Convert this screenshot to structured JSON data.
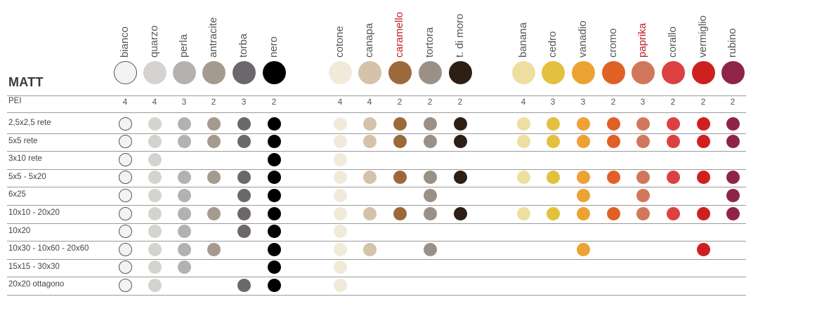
{
  "title": "MATT",
  "pei_label": "PEI",
  "columns": [
    {
      "name": "bianco",
      "color": "#f4f3f1",
      "border": "#555555",
      "pei": "4",
      "highlight": false
    },
    {
      "name": "quarzo",
      "color": "#d4d3cf",
      "border": null,
      "pei": "4",
      "highlight": false
    },
    {
      "name": "perla",
      "color": "#b3b2b0",
      "border": null,
      "pei": "3",
      "highlight": false
    },
    {
      "name": "antracite",
      "color": "#a49a8e",
      "border": null,
      "pei": "2",
      "highlight": false
    },
    {
      "name": "torba",
      "color": "#6b676a",
      "border": null,
      "pei": "3",
      "highlight": false
    },
    {
      "name": "nero",
      "color": "#000000",
      "border": null,
      "pei": "2",
      "highlight": false
    },
    {
      "name": "cotone",
      "color": "#f2ead8",
      "border": null,
      "pei": "4",
      "highlight": false
    },
    {
      "name": "canapa",
      "color": "#d4c2aa",
      "border": null,
      "pei": "4",
      "highlight": false
    },
    {
      "name": "caramello",
      "color": "#9c6a3a",
      "border": null,
      "pei": "2",
      "highlight": true
    },
    {
      "name": "tortora",
      "color": "#9a9086",
      "border": null,
      "pei": "2",
      "highlight": false
    },
    {
      "name": "t. di moro",
      "color": "#2d1e16",
      "border": null,
      "pei": "2",
      "highlight": false
    },
    {
      "name": "banana",
      "color": "#eedfa0",
      "border": null,
      "pei": "4",
      "highlight": false
    },
    {
      "name": "cedro",
      "color": "#e3c13e",
      "border": null,
      "pei": "3",
      "highlight": false
    },
    {
      "name": "vanadio",
      "color": "#eda234",
      "border": null,
      "pei": "3",
      "highlight": false
    },
    {
      "name": "cromo",
      "color": "#e06126",
      "border": null,
      "pei": "2",
      "highlight": false
    },
    {
      "name": "paprika",
      "color": "#d1775c",
      "border": null,
      "pei": "3",
      "highlight": true
    },
    {
      "name": "corallo",
      "color": "#dc4141",
      "border": null,
      "pei": "2",
      "highlight": false
    },
    {
      "name": "vermiglio",
      "color": "#cf2020",
      "border": null,
      "pei": "2",
      "highlight": false
    },
    {
      "name": "rubino",
      "color": "#8f2449",
      "border": null,
      "pei": "2",
      "highlight": false
    }
  ],
  "rows": [
    {
      "label": "2,5x2,5 rete",
      "available": [
        1,
        1,
        1,
        1,
        1,
        1,
        1,
        1,
        1,
        1,
        1,
        1,
        1,
        1,
        1,
        1,
        1,
        1,
        1
      ]
    },
    {
      "label": "5x5 rete",
      "available": [
        1,
        1,
        1,
        1,
        1,
        1,
        1,
        1,
        1,
        1,
        1,
        1,
        1,
        1,
        1,
        1,
        1,
        1,
        1
      ]
    },
    {
      "label": "3x10 rete",
      "available": [
        1,
        1,
        0,
        0,
        0,
        1,
        1,
        0,
        0,
        0,
        0,
        0,
        0,
        0,
        0,
        0,
        0,
        0,
        0
      ]
    },
    {
      "label": "5x5 - 5x20",
      "available": [
        1,
        1,
        1,
        1,
        1,
        1,
        1,
        1,
        1,
        1,
        1,
        1,
        1,
        1,
        1,
        1,
        1,
        1,
        1
      ]
    },
    {
      "label": "6x25",
      "available": [
        1,
        1,
        1,
        0,
        1,
        1,
        1,
        0,
        0,
        1,
        0,
        0,
        0,
        1,
        0,
        1,
        0,
        0,
        1
      ]
    },
    {
      "label": "10x10 - 20x20",
      "available": [
        1,
        1,
        1,
        1,
        1,
        1,
        1,
        1,
        1,
        1,
        1,
        1,
        1,
        1,
        1,
        1,
        1,
        1,
        1
      ]
    },
    {
      "label": "10x20",
      "available": [
        1,
        1,
        1,
        0,
        1,
        1,
        1,
        0,
        0,
        0,
        0,
        0,
        0,
        0,
        0,
        0,
        0,
        0,
        0
      ]
    },
    {
      "label": "10x30 - 10x60 - 20x60",
      "available": [
        1,
        1,
        1,
        1,
        0,
        1,
        1,
        1,
        0,
        1,
        0,
        0,
        0,
        1,
        0,
        0,
        0,
        1,
        0
      ]
    },
    {
      "label": "15x15 - 30x30",
      "available": [
        1,
        1,
        1,
        0,
        0,
        1,
        1,
        0,
        0,
        0,
        0,
        0,
        0,
        0,
        0,
        0,
        0,
        0,
        0
      ]
    },
    {
      "label": "20x20 ottagono",
      "available": [
        1,
        1,
        0,
        0,
        1,
        1,
        1,
        0,
        0,
        0,
        0,
        0,
        0,
        0,
        0,
        0,
        0,
        0,
        0
      ]
    }
  ]
}
